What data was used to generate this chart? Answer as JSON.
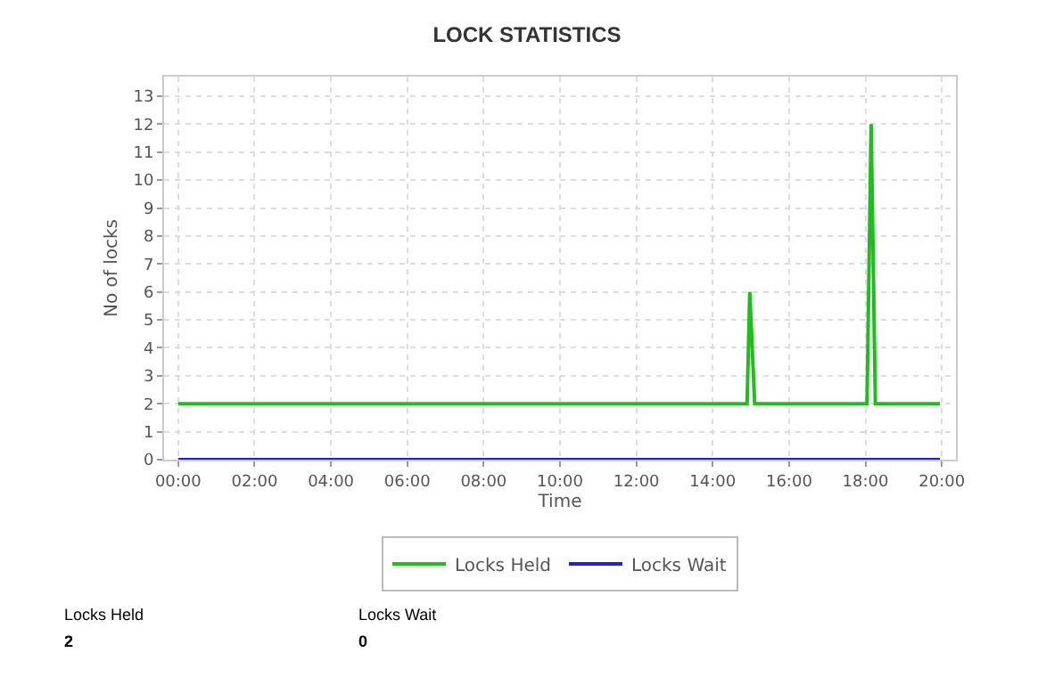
{
  "chart_data": {
    "type": "line",
    "title": "LOCK STATISTICS",
    "xlabel": "Time",
    "ylabel": "No of locks",
    "x": [
      0,
      14.9,
      14.97,
      15.1,
      18.04,
      18.15,
      18.26,
      19.95
    ],
    "series": [
      {
        "name": "Locks Held",
        "color": "#22bb22",
        "values": [
          2,
          2,
          6,
          2,
          2,
          12,
          2,
          2
        ]
      },
      {
        "name": "Locks Wait",
        "color": "#2222cc",
        "values": [
          0,
          0,
          0,
          0,
          0,
          0,
          0,
          0
        ]
      }
    ],
    "xlim": [
      -0.37,
      20.37
    ],
    "xticks": [
      {
        "value": 0,
        "label": "00:00"
      },
      {
        "value": 2,
        "label": "02:00"
      },
      {
        "value": 4,
        "label": "04:00"
      },
      {
        "value": 6,
        "label": "06:00"
      },
      {
        "value": 8,
        "label": "08:00"
      },
      {
        "value": 10,
        "label": "10:00"
      },
      {
        "value": 12,
        "label": "12:00"
      },
      {
        "value": 14,
        "label": "14:00"
      },
      {
        "value": 16,
        "label": "16:00"
      },
      {
        "value": 18,
        "label": "18:00"
      },
      {
        "value": 20,
        "label": "20:00"
      }
    ],
    "ylim": [
      0,
      13.7
    ],
    "yticks": [
      0,
      1,
      2,
      3,
      4,
      5,
      6,
      7,
      8,
      9,
      10,
      11,
      12,
      13
    ],
    "grid": true,
    "legend": "bottom",
    "marker": "none",
    "line_style": "solid",
    "annotations": [
      "Locks Held",
      "2",
      "Locks Wait",
      "0"
    ]
  }
}
